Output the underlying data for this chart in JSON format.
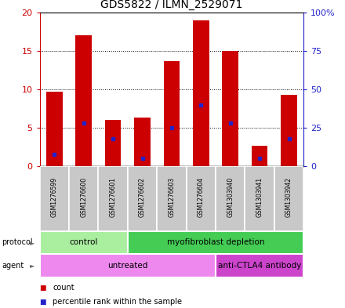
{
  "title": "GDS5822 / ILMN_2529071",
  "samples": [
    "GSM1276599",
    "GSM1276600",
    "GSM1276601",
    "GSM1276602",
    "GSM1276603",
    "GSM1276604",
    "GSM1303940",
    "GSM1303941",
    "GSM1303942"
  ],
  "counts": [
    9.7,
    17.0,
    6.0,
    6.3,
    13.7,
    19.0,
    15.0,
    2.7,
    9.3
  ],
  "percentile_ranks": [
    8,
    28,
    18,
    5,
    25,
    40,
    28,
    5,
    18
  ],
  "ylim_left": [
    0,
    20
  ],
  "ylim_right": [
    0,
    100
  ],
  "yticks_left": [
    0,
    5,
    10,
    15,
    20
  ],
  "yticks_right": [
    0,
    25,
    50,
    75,
    100
  ],
  "ytick_labels_left": [
    "0",
    "5",
    "10",
    "15",
    "20"
  ],
  "ytick_labels_right": [
    "0",
    "25",
    "50",
    "75",
    "100%"
  ],
  "bar_color": "#cc0000",
  "dot_color": "#2222cc",
  "bar_width": 0.55,
  "protocol_groups": [
    {
      "label": "control",
      "start": 0,
      "end": 3,
      "color": "#aaeea0"
    },
    {
      "label": "myofibroblast depletion",
      "start": 3,
      "end": 9,
      "color": "#44cc55"
    }
  ],
  "agent_groups": [
    {
      "label": "untreated",
      "start": 0,
      "end": 6,
      "color": "#ee88ee"
    },
    {
      "label": "anti-CTLA4 antibody",
      "start": 6,
      "end": 9,
      "color": "#cc44cc"
    }
  ],
  "legend_count_color": "#cc0000",
  "legend_percentile_color": "#2222cc",
  "title_fontsize": 10,
  "axis_color_left": "#cc0000",
  "axis_color_right": "#2222cc",
  "sample_box_color": "#c8c8c8",
  "grid_color": "black",
  "label_fontsize": 5.5,
  "protocol_fontsize": 7.5,
  "legend_fontsize": 7
}
